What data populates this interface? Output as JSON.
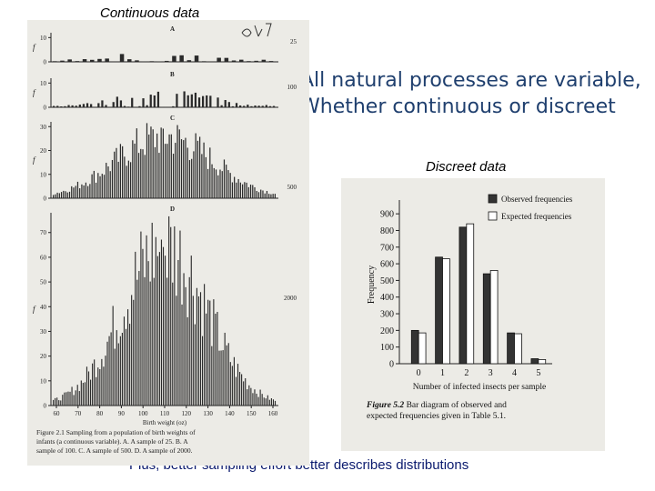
{
  "slide": {
    "continuous_label": "Continuous data",
    "natural_text": "All natural processes are variable, Whether continuous or discreet",
    "discreet_label": "Discreet data",
    "plus_text": "Plus, better sampling effort better describes distributions"
  },
  "chart_data": [
    {
      "type": "bar",
      "panel": "A",
      "sample_size_label": "25",
      "ylabel": "f",
      "yticks": [
        0,
        10
      ],
      "ylim": [
        0,
        12
      ]
    },
    {
      "type": "bar",
      "panel": "B",
      "sample_size_label": "100",
      "ylabel": "f",
      "yticks": [
        0,
        10
      ],
      "ylim": [
        0,
        12
      ]
    },
    {
      "type": "bar",
      "panel": "C",
      "sample_size_label": "500",
      "ylabel": "f",
      "yticks": [
        0,
        10,
        20,
        30
      ],
      "ylim": [
        0,
        32
      ]
    },
    {
      "type": "bar",
      "panel": "D",
      "sample_size_label": "2000",
      "ylabel": "f",
      "xlabel": "Birth weight (oz)",
      "yticks": [
        0,
        10,
        20,
        30,
        40,
        50,
        60,
        70
      ],
      "xticks": [
        60,
        70,
        80,
        90,
        100,
        110,
        120,
        130,
        140,
        150,
        160
      ],
      "ylim": [
        0,
        78
      ],
      "caption": "Figure 2.1  Sampling from a population of birth weights of infants (a continuous variable). A. A sample of 25. B. A sample of 100. C. A sample of 500. D. A sample of 2000."
    },
    {
      "type": "bar",
      "categories": [
        "0",
        "1",
        "2",
        "3",
        "4",
        "5"
      ],
      "series": [
        {
          "name": "Observed frequencies",
          "values": [
            200,
            640,
            820,
            540,
            185,
            30
          ]
        },
        {
          "name": "Expected frequencies",
          "values": [
            185,
            630,
            840,
            560,
            180,
            25
          ]
        }
      ],
      "xlabel": "Number of infected insects per sample",
      "ylabel": "Frequency",
      "yticks": [
        0,
        100,
        200,
        300,
        400,
        500,
        600,
        700,
        800,
        900
      ],
      "ylim": [
        0,
        950
      ],
      "legend": "top-right",
      "caption_bold": "Figure 5.2",
      "caption_rest": "Bar diagram of observed and expected frequencies given in Table 5.1.",
      "colors": {
        "observed": "#333333",
        "expected": "#ffffff"
      }
    }
  ]
}
